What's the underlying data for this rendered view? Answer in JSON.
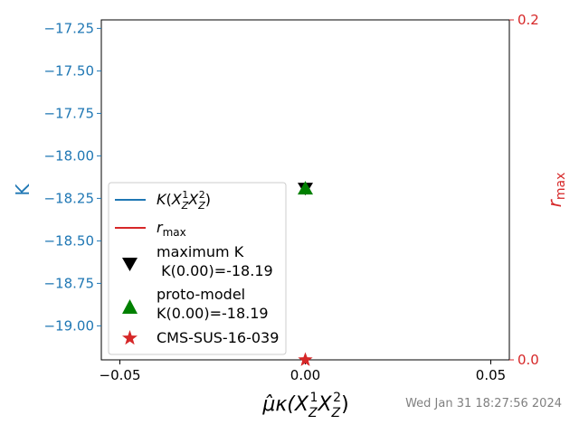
{
  "chart_data": {
    "type": "scatter",
    "xlabel": "μ̂κ(X_Z^1 X_Z^2)",
    "ylabel_left": "K",
    "ylabel_right": "r_max",
    "left_axis": {
      "ylim": [
        -19.2,
        -17.2
      ],
      "ticks": [
        -17.25,
        -17.5,
        -17.75,
        -18.0,
        -18.25,
        -18.5,
        -18.75,
        -19.0
      ],
      "tick_labels": [
        "−17.25",
        "−17.50",
        "−17.75",
        "−18.00",
        "−18.25",
        "−18.50",
        "−18.75",
        "−19.00"
      ],
      "color": "#1f77b4"
    },
    "right_axis": {
      "ylim": [
        0.0,
        0.2
      ],
      "ticks": [
        0.0,
        0.2
      ],
      "tick_labels": [
        "0.0",
        "0.2"
      ],
      "color": "#d62728"
    },
    "x_axis": {
      "xlim": [
        -0.055,
        0.055
      ],
      "ticks": [
        -0.05,
        0.0,
        0.05
      ],
      "tick_labels": [
        "−0.05",
        "0.00",
        "0.05"
      ]
    },
    "series": [
      {
        "name": "maximum K K(0.00)=-18.19",
        "axis": "left",
        "marker": "triangle-down",
        "color": "#000000",
        "x": [
          0.0
        ],
        "y": [
          -18.19
        ]
      },
      {
        "name": "proto-model K(0.00)=-18.19",
        "axis": "left",
        "marker": "triangle-up",
        "color": "#008000",
        "x": [
          0.0
        ],
        "y": [
          -18.19
        ]
      },
      {
        "name": "CMS-SUS-16-039",
        "axis": "right",
        "marker": "star",
        "color": "#d62728",
        "x": [
          0.0
        ],
        "y": [
          0.0
        ]
      }
    ],
    "legend": {
      "placement": "center-left",
      "entries": [
        {
          "kind": "line",
          "color": "#1f77b4",
          "lines": [
            "K(X_Z^1 X_Z^2)"
          ]
        },
        {
          "kind": "line",
          "color": "#d62728",
          "lines": [
            "r_max"
          ]
        },
        {
          "kind": "triangle-down",
          "color": "#000000",
          "lines": [
            "maximum K",
            " K(0.00)=-18.19"
          ]
        },
        {
          "kind": "triangle-up",
          "color": "#008000",
          "lines": [
            "proto-model",
            "K(0.00)=-18.19"
          ]
        },
        {
          "kind": "star",
          "color": "#d62728",
          "lines": [
            "CMS-SUS-16-039"
          ]
        }
      ]
    },
    "grid": false
  },
  "timestamp": "Wed Jan 31 18:27:56 2024"
}
